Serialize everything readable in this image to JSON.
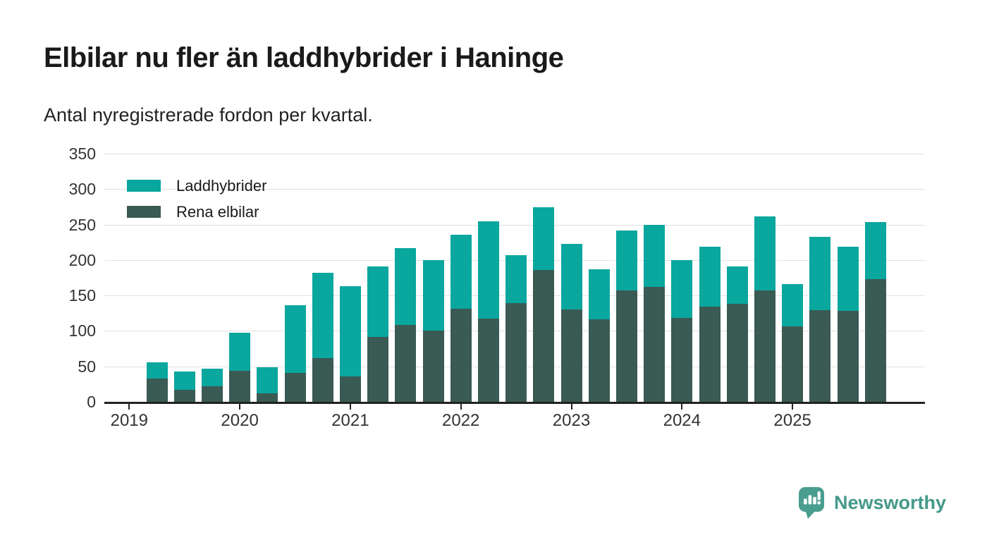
{
  "header": {
    "title": "Elbilar nu fler än laddhybrider i Haninge",
    "subtitle": "Antal nyregistrerade fordon per kvartal."
  },
  "chart_data": {
    "type": "bar",
    "stacked": true,
    "title": "Elbilar nu fler än laddhybrider i Haninge",
    "subtitle": "Antal nyregistrerade fordon per kvartal.",
    "categories": [
      "2019 Q2",
      "2019 Q3",
      "2019 Q4",
      "2020 Q1",
      "2020 Q2",
      "2020 Q3",
      "2020 Q4",
      "2021 Q1",
      "2021 Q2",
      "2021 Q3",
      "2021 Q4",
      "2022 Q1",
      "2022 Q2",
      "2022 Q3",
      "2022 Q4",
      "2023 Q1",
      "2023 Q2",
      "2023 Q3",
      "2023 Q4",
      "2024 Q1",
      "2024 Q2",
      "2024 Q3",
      "2024 Q4",
      "2025 Q1",
      "2025 Q2",
      "2025 Q3",
      "2025 Q4"
    ],
    "series": [
      {
        "name": "Laddhybrider",
        "color": "#0aa79e",
        "values": [
          23,
          26,
          25,
          53,
          37,
          95,
          120,
          127,
          100,
          109,
          100,
          105,
          138,
          68,
          88,
          93,
          71,
          85,
          88,
          82,
          85,
          53,
          105,
          60,
          104,
          91,
          81
        ]
      },
      {
        "name": "Rena elbilar",
        "color": "#3a5a54",
        "values": [
          33,
          17,
          22,
          44,
          12,
          41,
          62,
          36,
          91,
          108,
          100,
          131,
          117,
          139,
          186,
          130,
          116,
          157,
          162,
          118,
          134,
          138,
          157,
          106,
          129,
          128,
          173
        ]
      }
    ],
    "stack_order_bottom_to_top": [
      "Rena elbilar",
      "Laddhybrider"
    ],
    "ylim": [
      0,
      350
    ],
    "yticks": [
      0,
      50,
      100,
      150,
      200,
      250,
      300,
      350
    ],
    "xticks": [
      "2019",
      "2020",
      "2021",
      "2022",
      "2023",
      "2024",
      "2025"
    ],
    "grid": true,
    "legend_position": "top-left"
  },
  "footer": {
    "logo_text": "Newsworthy",
    "logo_text_color": "#45998a",
    "logo_bubble_color": "#4a9e90"
  }
}
